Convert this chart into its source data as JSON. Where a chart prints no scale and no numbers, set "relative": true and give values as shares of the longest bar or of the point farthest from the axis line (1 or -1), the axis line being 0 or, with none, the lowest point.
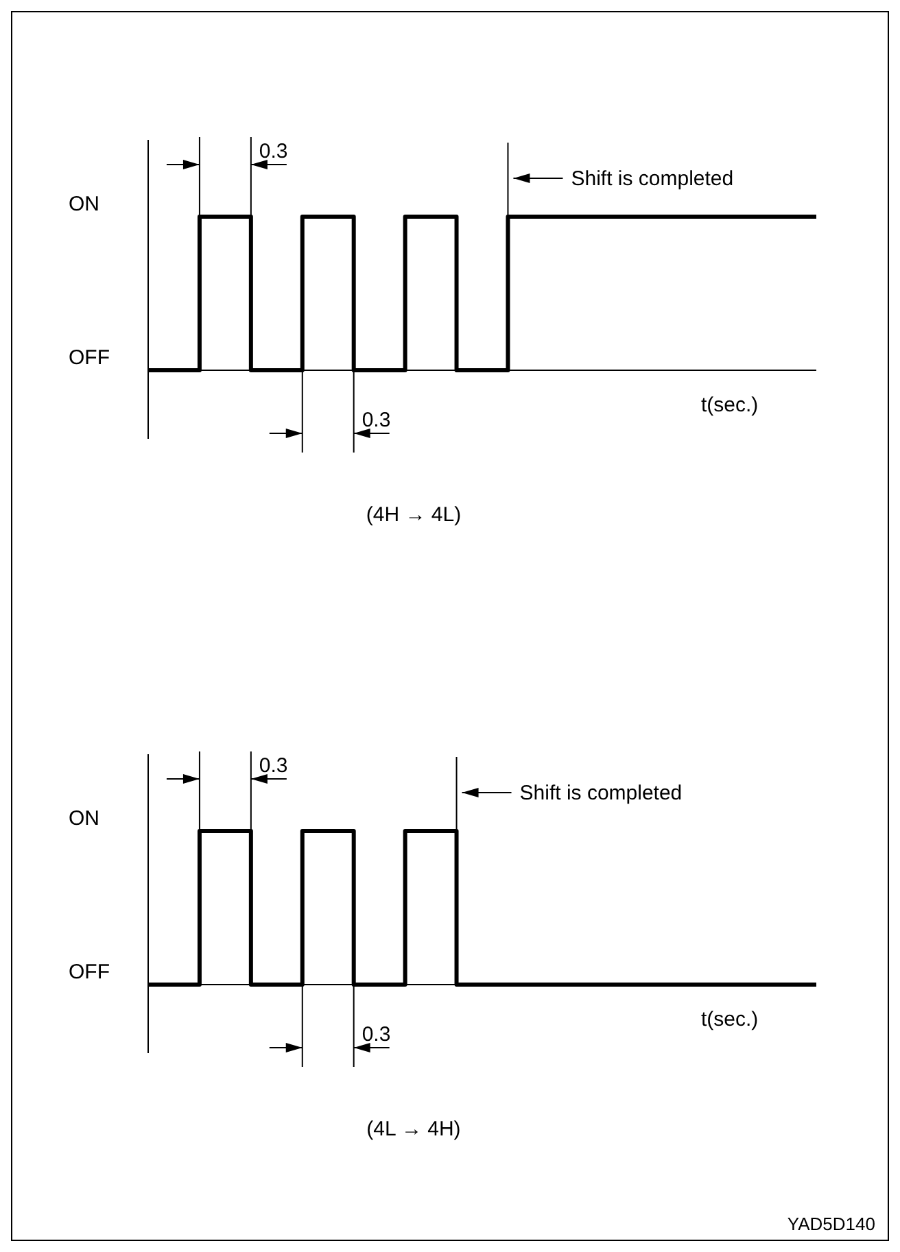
{
  "chart_data": [
    {
      "type": "step",
      "relative": true,
      "categories": [
        null,
        null,
        null,
        null,
        null,
        null,
        null,
        null,
        null,
        null,
        null,
        null,
        null,
        null
      ],
      "values": [
        0,
        1,
        0,
        1,
        0,
        1,
        0,
        1,
        1,
        1,
        1,
        1,
        1,
        1
      ],
      "color": "#000000",
      "xlabel": "t(sec.)",
      "annotations": [
        "ON",
        "OFF",
        "0.3",
        "0.3",
        "Shift is completed",
        "(4H → 4L)"
      ]
    },
    {
      "type": "step",
      "relative": true,
      "categories": [
        null,
        null,
        null,
        null,
        null,
        null,
        null,
        null,
        null,
        null,
        null,
        null,
        null,
        null
      ],
      "values": [
        0,
        1,
        0,
        1,
        0,
        1,
        0,
        0,
        0,
        0,
        0,
        0,
        0,
        0
      ],
      "color": "#000000",
      "xlabel": "t(sec.)",
      "annotations": [
        "ON",
        "OFF",
        "0.3",
        "0.3",
        "Shift is completed",
        "(4L → 4H)",
        "YAD5D140"
      ]
    }
  ]
}
